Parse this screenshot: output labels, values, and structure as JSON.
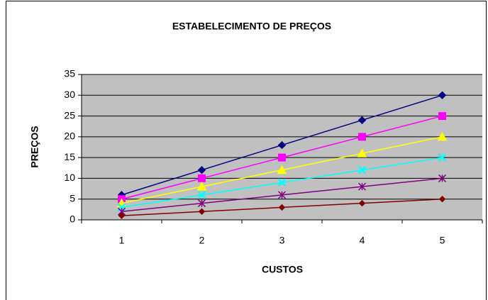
{
  "chart_data": {
    "type": "line",
    "title": "ESTABELECIMENTO DE PREÇOS",
    "x_label": "CUSTOS",
    "y_label": "PREÇOS",
    "categories": [
      "1",
      "2",
      "3",
      "4",
      "5"
    ],
    "series": [
      {
        "color": "#000080",
        "marker": "diamond",
        "values": [
          6,
          12,
          18,
          24,
          30
        ]
      },
      {
        "color": "#ff00ff",
        "marker": "square",
        "values": [
          5,
          10,
          15,
          20,
          25
        ]
      },
      {
        "color": "#ffff00",
        "marker": "triangle",
        "values": [
          4,
          8,
          12,
          16,
          20
        ]
      },
      {
        "color": "#00ffff",
        "marker": "x",
        "values": [
          3,
          6,
          9,
          12,
          15
        ]
      },
      {
        "color": "#800080",
        "marker": "star",
        "values": [
          2,
          4,
          6,
          8,
          10
        ]
      },
      {
        "color": "#800000",
        "marker": "circle",
        "values": [
          1,
          2,
          3,
          4,
          5
        ]
      }
    ],
    "ylim": [
      0,
      35
    ],
    "yticks": [
      0,
      5,
      10,
      15,
      20,
      25,
      30,
      35
    ],
    "grid": true,
    "plot_background": "#c0c0c0"
  }
}
